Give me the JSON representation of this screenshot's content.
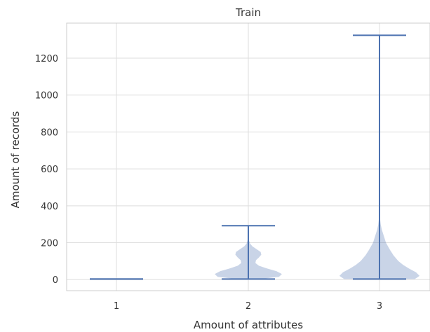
{
  "chart_data": {
    "type": "violin",
    "title": "Train",
    "xlabel": "Amount of attributes",
    "ylabel": "Amount of records",
    "categories": [
      "1",
      "2",
      "3"
    ],
    "x_ticks": [
      "1",
      "2",
      "3"
    ],
    "y_ticks": [
      "0",
      "200",
      "400",
      "600",
      "800",
      "1000",
      "1200"
    ],
    "ylim": [
      -60,
      1390
    ],
    "grid": true,
    "colors": {
      "line": "#4C72B0",
      "fill": "#4C72B0",
      "grid": "#DDDDDD",
      "frame": "#CCCCCC",
      "text": "#333333"
    },
    "violins": [
      {
        "category": "1",
        "min": 3,
        "max": 3,
        "density": []
      },
      {
        "category": "2",
        "min": 3,
        "max": 292,
        "density": [
          [
            3,
            0.2
          ],
          [
            15,
            0.52
          ],
          [
            30,
            0.57
          ],
          [
            45,
            0.48
          ],
          [
            60,
            0.32
          ],
          [
            75,
            0.18
          ],
          [
            90,
            0.12
          ],
          [
            105,
            0.13
          ],
          [
            120,
            0.18
          ],
          [
            135,
            0.22
          ],
          [
            150,
            0.21
          ],
          [
            165,
            0.14
          ],
          [
            180,
            0.07
          ],
          [
            195,
            0.03
          ],
          [
            210,
            0.015
          ],
          [
            230,
            0.004
          ]
        ]
      },
      {
        "category": "3",
        "min": 3,
        "max": 1324,
        "density": [
          [
            3,
            0.6
          ],
          [
            20,
            0.68
          ],
          [
            40,
            0.62
          ],
          [
            60,
            0.5
          ],
          [
            80,
            0.4
          ],
          [
            100,
            0.32
          ],
          [
            130,
            0.24
          ],
          [
            160,
            0.18
          ],
          [
            200,
            0.11
          ],
          [
            240,
            0.07
          ],
          [
            270,
            0.04
          ],
          [
            300,
            0.02
          ],
          [
            330,
            0.01
          ],
          [
            360,
            0.005
          ],
          [
            400,
            0.002
          ]
        ]
      }
    ]
  }
}
